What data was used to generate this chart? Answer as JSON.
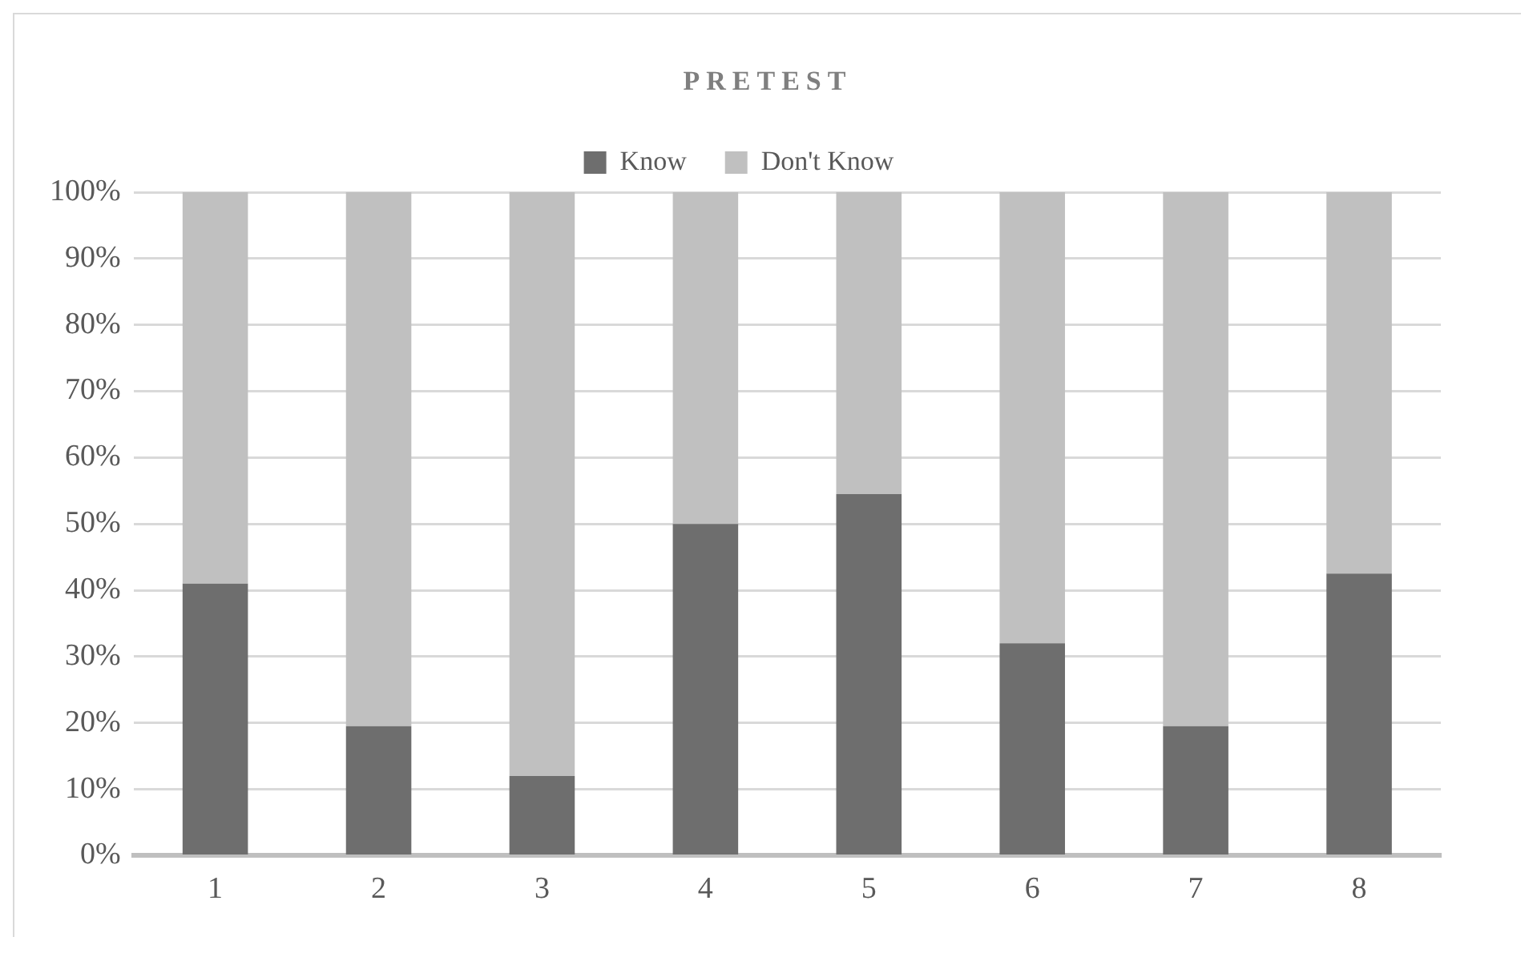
{
  "chart_data": {
    "type": "bar",
    "title": "PRETEST",
    "stacked": true,
    "categories": [
      "1",
      "2",
      "3",
      "4",
      "5",
      "6",
      "7",
      "8"
    ],
    "series": [
      {
        "name": "Know",
        "color": "#6e6e6e",
        "values": [
          41,
          19.5,
          12,
          50,
          54.5,
          32,
          19.5,
          42.5
        ]
      },
      {
        "name": "Don't Know",
        "color": "#c0c0c0",
        "values": [
          59,
          80.5,
          88,
          50,
          45.5,
          68,
          80.5,
          57.5
        ]
      }
    ],
    "ylim": [
      0,
      100
    ],
    "yticks": [
      {
        "value": 0,
        "label": "0%"
      },
      {
        "value": 10,
        "label": "10%"
      },
      {
        "value": 20,
        "label": "20%"
      },
      {
        "value": 30,
        "label": "30%"
      },
      {
        "value": 40,
        "label": "40%"
      },
      {
        "value": 50,
        "label": "50%"
      },
      {
        "value": 60,
        "label": "60%"
      },
      {
        "value": 70,
        "label": "70%"
      },
      {
        "value": 80,
        "label": "80%"
      },
      {
        "value": 90,
        "label": "90%"
      },
      {
        "value": 100,
        "label": "100%"
      }
    ],
    "grid": "y",
    "legend": "top"
  }
}
